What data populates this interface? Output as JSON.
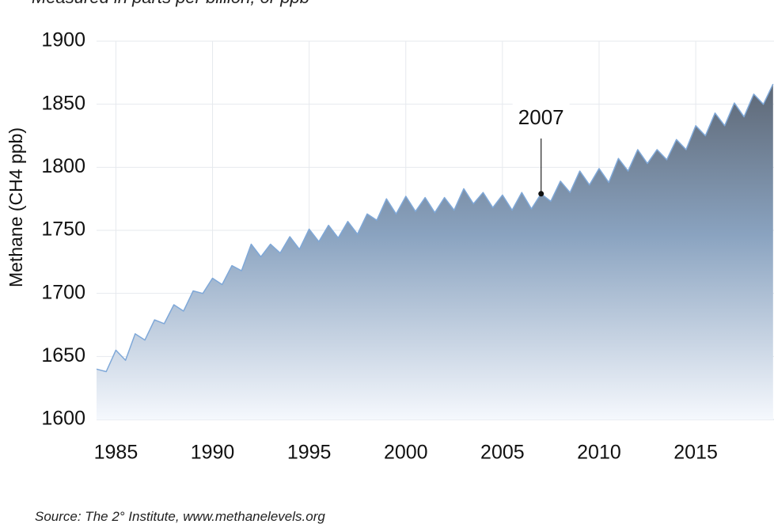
{
  "chart_data": {
    "type": "area",
    "subtitle": "Measured in parts per billion, or ppb",
    "ylabel": "Methane (CH4 ppb)",
    "source": "Source: The 2° Institute, www.methanelevels.org",
    "xlim": [
      1984,
      2019.05
    ],
    "ylim": [
      1600,
      1900
    ],
    "xticks": [
      1985,
      1990,
      1995,
      2000,
      2005,
      2010,
      2015
    ],
    "yticks": [
      1600,
      1650,
      1700,
      1750,
      1800,
      1850,
      1900
    ],
    "grid": true,
    "x": [
      1984.0,
      1984.5,
      1985.0,
      1985.5,
      1986.0,
      1986.5,
      1987.0,
      1987.5,
      1988.0,
      1988.5,
      1989.0,
      1989.5,
      1990.0,
      1990.5,
      1991.0,
      1991.5,
      1992.0,
      1992.5,
      1993.0,
      1993.5,
      1994.0,
      1994.5,
      1995.0,
      1995.5,
      1996.0,
      1996.5,
      1997.0,
      1997.5,
      1998.0,
      1998.5,
      1999.0,
      1999.5,
      2000.0,
      2000.5,
      2001.0,
      2001.5,
      2002.0,
      2002.5,
      2003.0,
      2003.5,
      2004.0,
      2004.5,
      2005.0,
      2005.5,
      2006.0,
      2006.5,
      2007.0,
      2007.5,
      2008.0,
      2008.5,
      2009.0,
      2009.5,
      2010.0,
      2010.5,
      2011.0,
      2011.5,
      2012.0,
      2012.5,
      2013.0,
      2013.5,
      2014.0,
      2014.5,
      2015.0,
      2015.5,
      2016.0,
      2016.5,
      2017.0,
      2017.5,
      2018.0,
      2018.5,
      2019.0
    ],
    "series": [
      {
        "name": "Methane",
        "color": "#7fa8d8",
        "values": [
          1640,
          1638,
          1655,
          1647,
          1668,
          1663,
          1679,
          1676,
          1691,
          1686,
          1702,
          1700,
          1712,
          1707,
          1722,
          1718,
          1739,
          1729,
          1739,
          1732,
          1745,
          1735,
          1751,
          1741,
          1754,
          1744,
          1757,
          1747,
          1763,
          1758,
          1775,
          1763,
          1777,
          1765,
          1776,
          1764,
          1776,
          1766,
          1783,
          1771,
          1780,
          1768,
          1778,
          1766,
          1780,
          1767,
          1779,
          1773,
          1789,
          1780,
          1797,
          1786,
          1799,
          1788,
          1807,
          1797,
          1814,
          1803,
          1814,
          1806,
          1822,
          1814,
          1833,
          1825,
          1843,
          1833,
          1851,
          1840,
          1858,
          1850,
          1866
        ]
      }
    ],
    "annotation": {
      "text": "2007",
      "x": 2007,
      "y": 1779
    }
  }
}
